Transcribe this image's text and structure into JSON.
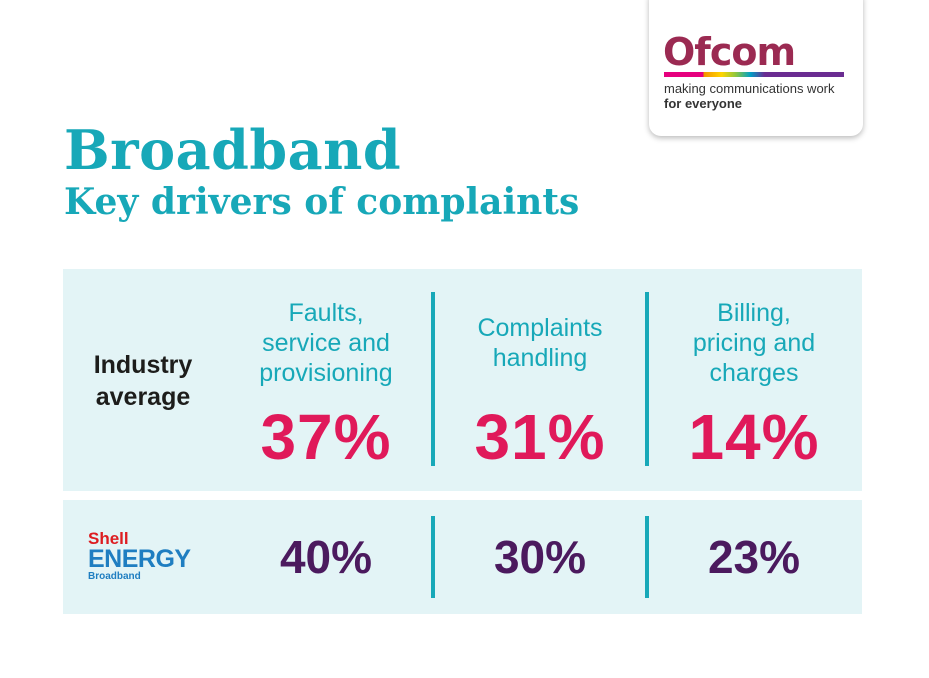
{
  "logo": {
    "name": "Ofcom",
    "tagline_line1": "making communications work",
    "tagline_line2": "for everyone"
  },
  "title": "Broadband",
  "subtitle": "Key drivers of complaints",
  "columns": [
    {
      "line1": "Faults,",
      "line2": "service and",
      "line3": "provisioning"
    },
    {
      "line1": "Complaints",
      "line2": "handling"
    },
    {
      "line1": "Billing,",
      "line2": "pricing and",
      "line3": "charges"
    }
  ],
  "industry": {
    "label_line1": "Industry",
    "label_line2": "average",
    "values": [
      "37%",
      "31%",
      "14%"
    ]
  },
  "provider": {
    "brand_line1": "Shell",
    "brand_line2": "ENERGY",
    "brand_line3": "Broadband",
    "values": [
      "40%",
      "30%",
      "23%"
    ]
  },
  "colors": {
    "accent": "#17a8b8",
    "industry_value": "#e0195a",
    "provider_value": "#4b1a5e",
    "panel": "#e3f4f6"
  }
}
